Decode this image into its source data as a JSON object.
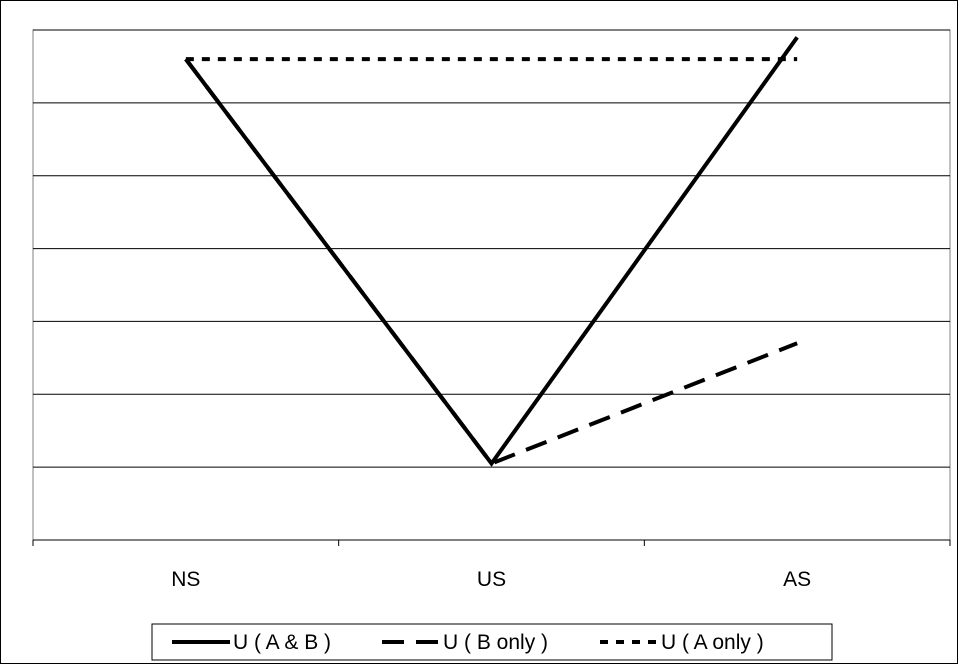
{
  "chart_data": {
    "type": "line",
    "title": "",
    "xlabel": "",
    "ylabel": "",
    "categories": [
      "NS",
      "US",
      "AS"
    ],
    "ylim": [
      0,
      7
    ],
    "y_gridlines": [
      1,
      2,
      3,
      4,
      5,
      6,
      7
    ],
    "grid": true,
    "legend_position": "bottom",
    "series": [
      {
        "name": "U ( A & B )",
        "values": [
          6.6,
          1.05,
          6.9
        ],
        "style": "solid",
        "color": "#000000"
      },
      {
        "name": "U ( B only )",
        "values": [
          6.6,
          1.05,
          2.7
        ],
        "style": "dashed",
        "color": "#000000"
      },
      {
        "name": "U ( A only )",
        "values": [
          6.6,
          null,
          6.6
        ],
        "style": "dotted",
        "color": "#000000"
      }
    ]
  }
}
